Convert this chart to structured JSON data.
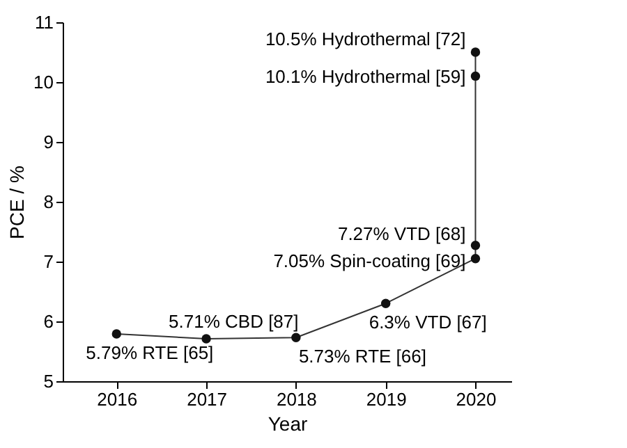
{
  "chart_data": {
    "type": "line",
    "xlabel": "Year",
    "ylabel": "PCE / %",
    "x": [
      2016,
      2017,
      2018,
      2019,
      2020,
      2020,
      2020,
      2020
    ],
    "series": [
      {
        "color": "#333333",
        "values": [
          5.79,
          5.71,
          5.73,
          6.3,
          7.05,
          7.27,
          10.1,
          10.5
        ]
      }
    ],
    "xlim": [
      2015.4,
      2020.4
    ],
    "xticks": [
      2016,
      2017,
      2018,
      2019,
      2020
    ],
    "ylim": [
      5,
      11
    ],
    "yticks": [
      5,
      6,
      7,
      8,
      9,
      10,
      11
    ],
    "marker": "circle",
    "line_style": "solid",
    "annotations": [
      {
        "text": "5.79% RTE [65]",
        "x": 2016,
        "y": 5.79
      },
      {
        "text": "5.71% CBD [87]",
        "x": 2017,
        "y": 5.71
      },
      {
        "text": "5.73% RTE [66]",
        "x": 2018,
        "y": 5.73
      },
      {
        "text": "6.3% VTD [67]",
        "x": 2019,
        "y": 6.3
      },
      {
        "text": "7.05% Spin-coating [69]",
        "x": 2020,
        "y": 7.05
      },
      {
        "text": "7.27% VTD [68]",
        "x": 2020,
        "y": 7.27
      },
      {
        "text": "10.1% Hydrothermal [59]",
        "x": 2020,
        "y": 10.1
      },
      {
        "text": "10.5% Hydrothermal [72]",
        "x": 2020,
        "y": 10.5
      }
    ]
  }
}
